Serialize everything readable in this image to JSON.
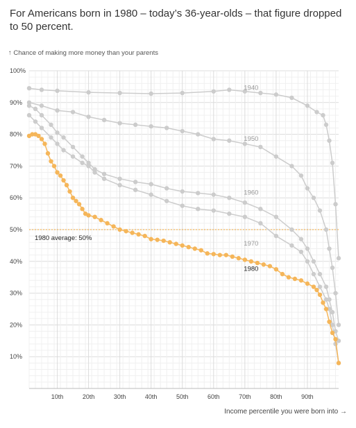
{
  "headline": "For Americans born in 1980 – today’s 36-year-olds –  that figure dropped to 50 percent.",
  "chart_data": {
    "type": "scatter",
    "ylabel": "↑ Chance of making more money than your parents",
    "xlabel": "Income percentile you were born into →",
    "xlim": [
      1,
      100
    ],
    "ylim": [
      0,
      100
    ],
    "y_ticks": [
      10,
      20,
      30,
      40,
      50,
      60,
      70,
      80,
      90,
      100
    ],
    "y_tick_labels": [
      "10%",
      "20%",
      "30%",
      "40%",
      "50%",
      "60%",
      "70%",
      "80%",
      "90%",
      "100%"
    ],
    "x_ticks": [
      10,
      20,
      30,
      40,
      50,
      60,
      70,
      80,
      90
    ],
    "x_tick_labels": [
      "10th",
      "20th",
      "30th",
      "40th",
      "50th",
      "60th",
      "70th",
      "80th",
      "90th"
    ],
    "grid": true,
    "reference_line": {
      "y": 50,
      "label": "1980 average: 50%",
      "color": "#f5b65a"
    },
    "series": [
      {
        "name": "1940",
        "color": "#cccccc",
        "label_color": "#999999",
        "label_at": [
          72,
          94
        ],
        "points": [
          [
            1,
            94.5
          ],
          [
            5,
            94
          ],
          [
            10,
            93.7
          ],
          [
            20,
            93.2
          ],
          [
            30,
            93
          ],
          [
            40,
            92.8
          ],
          [
            50,
            93
          ],
          [
            60,
            93.5
          ],
          [
            65,
            94
          ],
          [
            70,
            93.5
          ],
          [
            75,
            93
          ],
          [
            80,
            92.5
          ],
          [
            85,
            91.5
          ],
          [
            90,
            89
          ],
          [
            93,
            87
          ],
          [
            95,
            86
          ],
          [
            96,
            83
          ],
          [
            97,
            78
          ],
          [
            98,
            71
          ],
          [
            99,
            58
          ],
          [
            100,
            41
          ]
        ]
      },
      {
        "name": "1950",
        "color": "#cccccc",
        "label_color": "#999999",
        "label_at": [
          72,
          78
        ],
        "points": [
          [
            1,
            90
          ],
          [
            5,
            89
          ],
          [
            10,
            87.5
          ],
          [
            15,
            87
          ],
          [
            20,
            85.5
          ],
          [
            25,
            84.5
          ],
          [
            30,
            83.5
          ],
          [
            35,
            83
          ],
          [
            40,
            82.5
          ],
          [
            45,
            82
          ],
          [
            50,
            81
          ],
          [
            55,
            80
          ],
          [
            60,
            78.5
          ],
          [
            65,
            78
          ],
          [
            70,
            77
          ],
          [
            75,
            76
          ],
          [
            80,
            73
          ],
          [
            85,
            70
          ],
          [
            88,
            67
          ],
          [
            90,
            63
          ],
          [
            92,
            60
          ],
          [
            94,
            56
          ],
          [
            96,
            50
          ],
          [
            97,
            44
          ],
          [
            98,
            38
          ],
          [
            99,
            30
          ],
          [
            100,
            20
          ]
        ]
      },
      {
        "name": "1960",
        "color": "#cccccc",
        "label_color": "#999999",
        "label_at": [
          72,
          61
        ],
        "points": [
          [
            1,
            89
          ],
          [
            3,
            88
          ],
          [
            5,
            86
          ],
          [
            8,
            83
          ],
          [
            10,
            80.5
          ],
          [
            12,
            79
          ],
          [
            15,
            76
          ],
          [
            18,
            73
          ],
          [
            20,
            71
          ],
          [
            22,
            69
          ],
          [
            25,
            67.5
          ],
          [
            30,
            66
          ],
          [
            35,
            65
          ],
          [
            40,
            64.3
          ],
          [
            45,
            63
          ],
          [
            50,
            62
          ],
          [
            55,
            61.5
          ],
          [
            60,
            61
          ],
          [
            65,
            60
          ],
          [
            70,
            58.5
          ],
          [
            75,
            56.5
          ],
          [
            80,
            54
          ],
          [
            85,
            50
          ],
          [
            88,
            47
          ],
          [
            90,
            44
          ],
          [
            92,
            40
          ],
          [
            94,
            36
          ],
          [
            96,
            32
          ],
          [
            97,
            28
          ],
          [
            98,
            24
          ],
          [
            99,
            18
          ],
          [
            100,
            15
          ]
        ]
      },
      {
        "name": "1970",
        "color": "#cccccc",
        "label_color": "#999999",
        "label_at": [
          72,
          45
        ],
        "points": [
          [
            1,
            86
          ],
          [
            3,
            84
          ],
          [
            5,
            82
          ],
          [
            8,
            79
          ],
          [
            10,
            77
          ],
          [
            12,
            75
          ],
          [
            15,
            73
          ],
          [
            18,
            71
          ],
          [
            20,
            70
          ],
          [
            22,
            68
          ],
          [
            25,
            66
          ],
          [
            30,
            64
          ],
          [
            35,
            62.5
          ],
          [
            40,
            61
          ],
          [
            45,
            59
          ],
          [
            50,
            57.5
          ],
          [
            55,
            56.5
          ],
          [
            60,
            56
          ],
          [
            65,
            55
          ],
          [
            70,
            54
          ],
          [
            75,
            52
          ],
          [
            80,
            48
          ],
          [
            85,
            45
          ],
          [
            88,
            43
          ],
          [
            90,
            40
          ],
          [
            92,
            36
          ],
          [
            94,
            32
          ],
          [
            96,
            28
          ],
          [
            97,
            25
          ],
          [
            98,
            20
          ],
          [
            99,
            14
          ],
          [
            100,
            8
          ]
        ]
      },
      {
        "name": "1980",
        "color": "#f5b65a",
        "label_color": "#222222",
        "label_at": [
          72,
          37
        ],
        "points": [
          [
            1,
            79.5
          ],
          [
            2,
            80
          ],
          [
            3,
            80
          ],
          [
            4,
            79.5
          ],
          [
            5,
            78.5
          ],
          [
            6,
            77
          ],
          [
            7,
            74
          ],
          [
            8,
            71.5
          ],
          [
            9,
            70
          ],
          [
            10,
            68
          ],
          [
            11,
            67
          ],
          [
            12,
            65.5
          ],
          [
            13,
            64
          ],
          [
            14,
            62
          ],
          [
            15,
            60
          ],
          [
            16,
            59
          ],
          [
            17,
            58
          ],
          [
            18,
            56.5
          ],
          [
            19,
            55
          ],
          [
            20,
            54.5
          ],
          [
            22,
            54
          ],
          [
            24,
            53
          ],
          [
            26,
            52
          ],
          [
            28,
            51
          ],
          [
            30,
            50
          ],
          [
            32,
            49.5
          ],
          [
            34,
            49
          ],
          [
            36,
            48.5
          ],
          [
            38,
            48
          ],
          [
            40,
            47
          ],
          [
            42,
            46.8
          ],
          [
            44,
            46.5
          ],
          [
            46,
            46
          ],
          [
            48,
            45.5
          ],
          [
            50,
            45
          ],
          [
            52,
            44.5
          ],
          [
            54,
            44
          ],
          [
            56,
            43.5
          ],
          [
            58,
            42.5
          ],
          [
            60,
            42.3
          ],
          [
            62,
            42
          ],
          [
            64,
            42
          ],
          [
            66,
            41.5
          ],
          [
            68,
            41
          ],
          [
            70,
            40.5
          ],
          [
            72,
            40
          ],
          [
            74,
            39.5
          ],
          [
            76,
            39
          ],
          [
            78,
            38.5
          ],
          [
            80,
            37.5
          ],
          [
            82,
            36
          ],
          [
            84,
            35
          ],
          [
            86,
            34.5
          ],
          [
            88,
            34
          ],
          [
            90,
            33
          ],
          [
            92,
            32
          ],
          [
            93,
            31
          ],
          [
            94,
            29.5
          ],
          [
            95,
            27
          ],
          [
            96,
            25
          ],
          [
            97,
            21
          ],
          [
            98,
            17.5
          ],
          [
            99,
            15.5
          ],
          [
            100,
            8
          ]
        ]
      }
    ]
  }
}
